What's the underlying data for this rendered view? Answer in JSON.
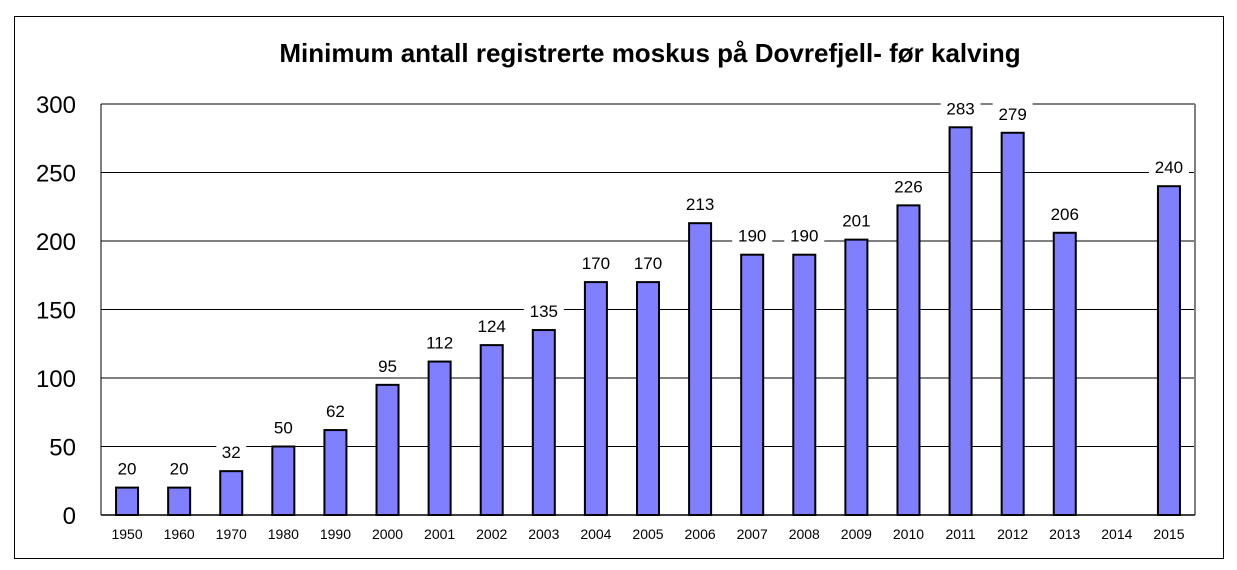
{
  "chart_data": {
    "type": "bar",
    "title": "Minimum antall registrerte moskus på Dovrefjell- før kalving",
    "xlabel": "",
    "ylabel": "",
    "ylim": [
      0,
      300
    ],
    "yticks": [
      0,
      50,
      100,
      150,
      200,
      250,
      300
    ],
    "grid": true,
    "categories": [
      "1950",
      "1960",
      "1970",
      "1980",
      "1990",
      "2000",
      "2001",
      "2002",
      "2003",
      "2004",
      "2005",
      "2006",
      "2007",
      "2008",
      "2009",
      "2010",
      "2011",
      "2012",
      "2013",
      "2014",
      "2015"
    ],
    "values": [
      20,
      20,
      32,
      50,
      62,
      95,
      112,
      124,
      135,
      170,
      170,
      213,
      190,
      190,
      201,
      226,
      283,
      279,
      206,
      null,
      240
    ],
    "colors": {
      "bar_fill": "#8080ff",
      "bar_stroke": "#000000",
      "grid": "#000000",
      "plot_border": "#808080"
    }
  }
}
